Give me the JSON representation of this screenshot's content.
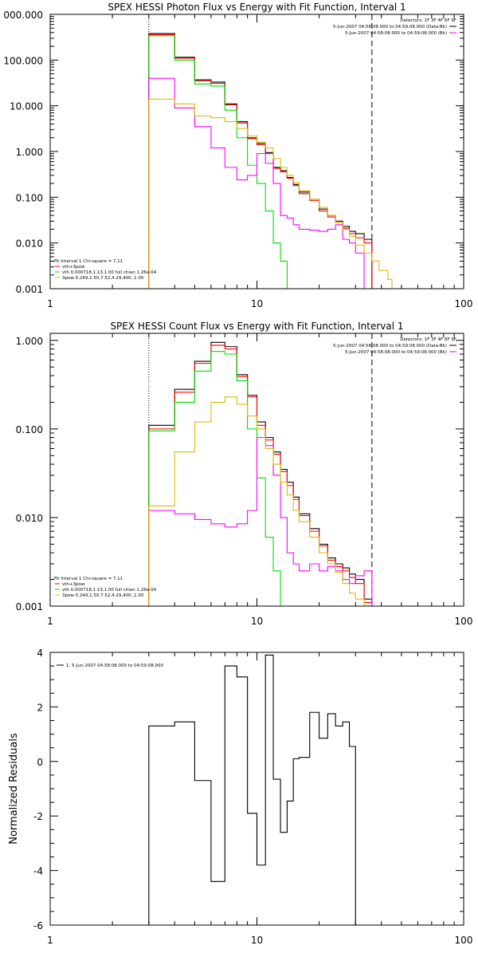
{
  "chart_data": [
    {
      "type": "line",
      "title": "SPEX HESSI Photon Flux vs Energy with Fit Function, Interval 1",
      "x_scale": "log",
      "y_scale": "log",
      "xlim": [
        1,
        100
      ],
      "ylim": [
        0.001,
        1000
      ],
      "x_tick_labels": [
        "1",
        "10",
        "100"
      ],
      "y_tick_labels": [
        "0.001",
        "0.010",
        "0.100",
        "1.000",
        "10.000",
        "100.000",
        "000.000"
      ],
      "detector_text": "Detectors: 1F 3F 4F 6F 9F",
      "time_lines": [
        {
          "text": "5-Jun-2007 04:58:08.000 to 04:59:08.000 (Data-Bk)",
          "color": "#000000"
        },
        {
          "text": "5-Jun-2007 04:58:08.000 to 04:59:08.000 (Bk)",
          "color": "#ff00ff"
        }
      ],
      "fit_lines": [
        {
          "text": "Fit Interval  1    Chi-square = 7.11",
          "color": null
        },
        {
          "text": "vth+3pow",
          "color": "#ff0000"
        },
        {
          "text": "vth 0.000718,1.13,1.00   full chian 1.26e-04",
          "color": "#00dd00"
        },
        {
          "text": "3pow 0.249,1.50,7.52,4.29,400.,1.00",
          "color": "#ddbb00"
        }
      ],
      "vlines": [
        {
          "x": 3.0,
          "style": "dotted"
        },
        {
          "x": 36.0,
          "style": "dashed"
        }
      ],
      "bin_edges": [
        3.0,
        4.0,
        5.0,
        6.0,
        7.0,
        8.0,
        9.0,
        10.0,
        11.0,
        12.0,
        13.0,
        14.0,
        15.0,
        16.0,
        18.0,
        20.0,
        22.0,
        24.0,
        26.0,
        28.0,
        30.0,
        33.0,
        36.0,
        39.0,
        43.0,
        45.0,
        50.0
      ],
      "series": [
        {
          "color": "#000000",
          "values": [
            380,
            115,
            37,
            33,
            11,
            4.5,
            2.0,
            1.5,
            0.95,
            0.45,
            0.38,
            0.27,
            0.19,
            0.13,
            0.09,
            0.055,
            0.04,
            0.03,
            0.023,
            0.018,
            0.016,
            0.012
          ]
        },
        {
          "color": "#ff0000",
          "values": [
            360,
            110,
            35,
            31,
            10.5,
            4.2,
            1.9,
            1.4,
            0.9,
            0.43,
            0.36,
            0.26,
            0.18,
            0.12,
            0.085,
            0.05,
            0.037,
            0.028,
            0.021,
            0.016,
            0.013,
            0.01
          ]
        },
        {
          "color": "#00dd00",
          "values": [
            340,
            100,
            30,
            27,
            8,
            2.0,
            0.5,
            0.2,
            0.05,
            0.01,
            0.004,
            0.001
          ]
        },
        {
          "color": "#ff00ff",
          "values": [
            40,
            9,
            3.5,
            1.2,
            0.45,
            0.24,
            0.3,
            0.9,
            0.55,
            0.2,
            0.04,
            0.035,
            0.025,
            0.02,
            0.019,
            0.018,
            0.02,
            0.025,
            0.012,
            0.01,
            0.006,
            0.001
          ]
        },
        {
          "color": "#ddbb00",
          "values": [
            14,
            11,
            6,
            5.5,
            4.5,
            3.2,
            2.2,
            1.6,
            1.2,
            0.7,
            0.45,
            0.3,
            0.21,
            0.14,
            0.09,
            0.06,
            0.04,
            0.028,
            0.02,
            0.014,
            0.009,
            0.006,
            0.004,
            0.0025,
            0.0016,
            0.001
          ]
        }
      ]
    },
    {
      "type": "line",
      "title": "SPEX HESSI Count Flux vs Energy with Fit Function, Interval 1",
      "x_scale": "log",
      "y_scale": "log",
      "xlim": [
        1,
        100
      ],
      "ylim": [
        0.001,
        1.2
      ],
      "x_tick_labels": [
        "1",
        "10",
        "100"
      ],
      "y_tick_labels": [
        "0.001",
        "0.010",
        "0.100",
        "1.000"
      ],
      "detector_text": "Detectors: 1F 3F 4F 6F 9F",
      "time_lines": [
        {
          "text": "5-Jun-2007 04:58:08.000 to 04:59:08.000 (Data-Bk)",
          "color": "#000000"
        },
        {
          "text": "5-Jun-2007 04:58:08.000 to 04:59:08.000 (Bk)",
          "color": "#ff00ff"
        }
      ],
      "fit_lines": [
        {
          "text": "Fit Interval  1    Chi-square = 7.11",
          "color": null
        },
        {
          "text": "vth+3pow",
          "color": "#ff0000"
        },
        {
          "text": "vth 0.000718,1.13,1.00   full chian 1.26e-04",
          "color": "#00dd00"
        },
        {
          "text": "3pow 0.249,1.50,7.52,4.29,400.,1.00",
          "color": "#ddbb00"
        }
      ],
      "vlines": [
        {
          "x": 3.0,
          "style": "dotted"
        },
        {
          "x": 36.0,
          "style": "dashed"
        }
      ],
      "bin_edges": [
        3.0,
        4.0,
        5.0,
        6.0,
        7.0,
        8.0,
        9.0,
        10.0,
        11.0,
        12.0,
        13.0,
        14.0,
        15.0,
        16.0,
        18.0,
        20.0,
        22.0,
        24.0,
        26.0,
        28.0,
        30.0,
        33.0,
        36.0
      ],
      "series": [
        {
          "color": "#000000",
          "values": [
            0.11,
            0.28,
            0.58,
            0.95,
            0.85,
            0.41,
            0.24,
            0.12,
            0.08,
            0.055,
            0.035,
            0.025,
            0.017,
            0.011,
            0.0075,
            0.005,
            0.0035,
            0.003,
            0.0027,
            0.0023,
            0.002,
            0.0012
          ]
        },
        {
          "color": "#ff0000",
          "values": [
            0.1,
            0.26,
            0.55,
            0.88,
            0.8,
            0.39,
            0.23,
            0.11,
            0.075,
            0.052,
            0.033,
            0.023,
            0.016,
            0.0105,
            0.007,
            0.0048,
            0.0033,
            0.0028,
            0.0025,
            0.0021,
            0.0018,
            0.0011
          ]
        },
        {
          "color": "#00dd00",
          "values": [
            0.095,
            0.2,
            0.45,
            0.75,
            0.7,
            0.35,
            0.1,
            0.028,
            0.006,
            0.0025,
            0.001
          ]
        },
        {
          "color": "#ff00ff",
          "values": [
            0.012,
            0.011,
            0.0095,
            0.0085,
            0.0078,
            0.0085,
            0.012,
            0.08,
            0.065,
            0.03,
            0.01,
            0.004,
            0.003,
            0.0025,
            0.003,
            0.0025,
            0.0028,
            0.0025,
            0.002,
            0.0018,
            0.0022,
            0.0025
          ]
        },
        {
          "color": "#ddbb00",
          "values": [
            0.0135,
            0.055,
            0.12,
            0.2,
            0.23,
            0.19,
            0.14,
            0.1,
            0.06,
            0.04,
            0.025,
            0.018,
            0.012,
            0.009,
            0.006,
            0.004,
            0.003,
            0.0024,
            0.0018,
            0.0014,
            0.0012,
            0.001
          ]
        }
      ]
    },
    {
      "type": "line",
      "title": "",
      "x_scale": "log",
      "y_scale": "linear",
      "xlim": [
        1,
        100
      ],
      "ylim": [
        -6,
        4
      ],
      "ylabel": "Normalized Residuals",
      "x_tick_labels": [
        "1",
        "10",
        "100"
      ],
      "y_tick_labels": [
        "4",
        "2",
        "0",
        "-2",
        "-4",
        "-6"
      ],
      "legend_text": "1.  5-Jun-2007 04:58:08.000 to 04:59:08.000",
      "bin_edges": [
        3.0,
        4.0,
        5.0,
        6.0,
        7.0,
        8.0,
        9.0,
        10.0,
        11.0,
        12.0,
        13.0,
        14.0,
        15.0,
        16.0,
        18.0,
        20.0,
        22.0,
        24.0,
        26.0,
        28.0,
        30.0,
        33.0,
        36.0
      ],
      "series": [
        {
          "color": "#000000",
          "values": [
            1.3,
            1.45,
            -0.7,
            -4.4,
            3.5,
            3.1,
            -1.9,
            -3.8,
            3.9,
            -0.65,
            -2.6,
            -1.45,
            0.1,
            0.15,
            1.8,
            0.85,
            1.75,
            1.3,
            1.45,
            0.55
          ]
        }
      ]
    }
  ]
}
